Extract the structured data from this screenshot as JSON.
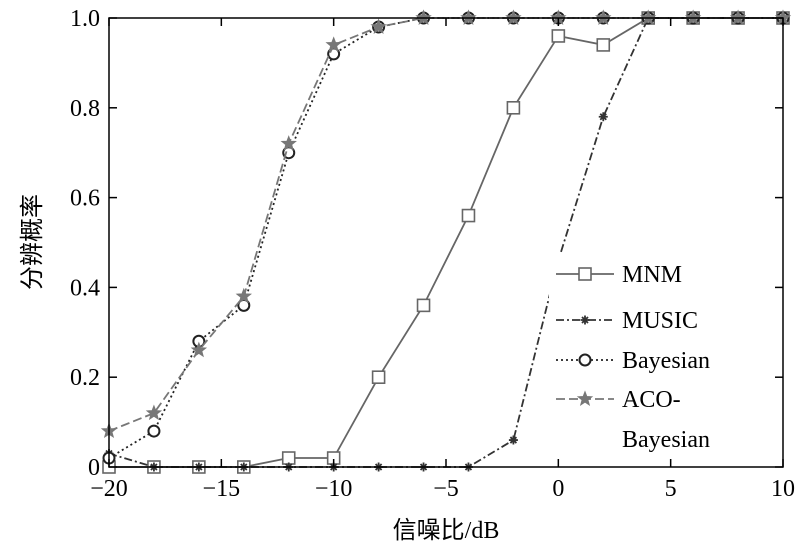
{
  "chart_data": {
    "type": "line",
    "xlabel": "信噪比/dB",
    "ylabel": "分辨概率",
    "xlim": [
      -20,
      10
    ],
    "ylim": [
      0,
      1
    ],
    "xticks": [
      -20,
      -15,
      -10,
      -5,
      0,
      5,
      10
    ],
    "yticks": [
      0,
      0.2,
      0.4,
      0.6,
      0.8,
      1.0
    ],
    "xtick_labels": [
      "−20",
      "−15",
      "−10",
      "−5",
      "0",
      "5",
      "10"
    ],
    "ytick_labels": [
      "0",
      "0.2",
      "0.4",
      "0.6",
      "0.8",
      "1.0"
    ],
    "grid": false,
    "legend_position": "center-right",
    "series": [
      {
        "name": "MNM",
        "style": "solid",
        "marker": "square",
        "color": "#666666",
        "x": [
          -20,
          -18,
          -16,
          -14,
          -12,
          -10,
          -8,
          -6,
          -4,
          -2,
          0,
          2,
          4,
          6,
          8,
          10
        ],
        "y": [
          0,
          0,
          0,
          0,
          0.02,
          0.02,
          0.2,
          0.36,
          0.56,
          0.8,
          0.96,
          0.94,
          1.0,
          1.0,
          1.0,
          1.0
        ]
      },
      {
        "name": "MUSIC",
        "style": "dashdot",
        "marker": "plus",
        "color": "#333333",
        "x": [
          -20,
          -18,
          -16,
          -14,
          -12,
          -10,
          -8,
          -6,
          -4,
          -2,
          0,
          2,
          4,
          6,
          8,
          10
        ],
        "y": [
          0.03,
          0,
          0,
          0,
          0,
          0,
          0,
          0,
          0,
          0.06,
          0.46,
          0.78,
          1.0,
          1.0,
          1.0,
          1.0
        ]
      },
      {
        "name": "Bayesian",
        "style": "dotted",
        "marker": "circle",
        "color": "#222222",
        "x": [
          -20,
          -18,
          -16,
          -14,
          -12,
          -10,
          -8,
          -6,
          -4,
          -2,
          0,
          2,
          4,
          6,
          8,
          10
        ],
        "y": [
          0.02,
          0.08,
          0.28,
          0.36,
          0.7,
          0.92,
          0.98,
          1.0,
          1.0,
          1.0,
          1.0,
          1.0,
          1.0,
          1.0,
          1.0,
          1.0
        ]
      },
      {
        "name": "ACO-Bayesian",
        "legend_lines": [
          "ACO-",
          "Bayesian"
        ],
        "style": "longdash",
        "marker": "star",
        "color": "#777777",
        "x": [
          -20,
          -18,
          -16,
          -14,
          -12,
          -10,
          -8,
          -6,
          -4,
          -2,
          0,
          2,
          4,
          6,
          8,
          10
        ],
        "y": [
          0.08,
          0.12,
          0.26,
          0.38,
          0.72,
          0.94,
          0.98,
          1.0,
          1.0,
          1.0,
          1.0,
          1.0,
          1.0,
          1.0,
          1.0,
          1.0
        ]
      }
    ]
  }
}
